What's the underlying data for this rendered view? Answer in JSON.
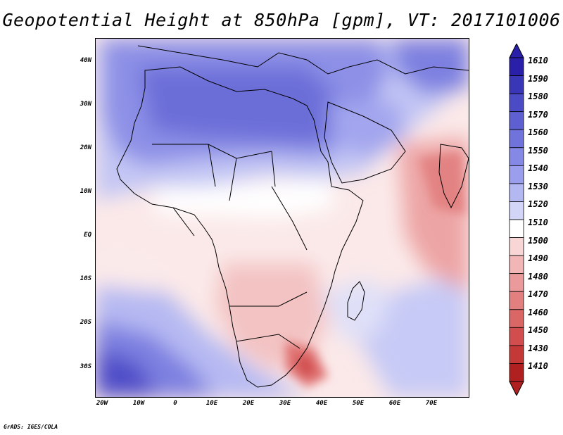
{
  "title": "Geopotential Height at 850hPa [gpm], VT: 2017101006",
  "credit": "GrADS: IGES/COLA",
  "lat_labels": [
    "40N",
    "30N",
    "20N",
    "10N",
    "EQ",
    "10S",
    "20S",
    "30S"
  ],
  "lon_labels": [
    "20W",
    "10W",
    "0",
    "10E",
    "20E",
    "30E",
    "40E",
    "50E",
    "60E",
    "70E"
  ],
  "colorbar": {
    "levels": [
      "1610",
      "1590",
      "1580",
      "1570",
      "1560",
      "1550",
      "1540",
      "1530",
      "1520",
      "1510",
      "1500",
      "1490",
      "1480",
      "1470",
      "1460",
      "1450",
      "1430",
      "1410"
    ],
    "colors": [
      "#2a1fa8",
      "#3a36b8",
      "#4c4bc6",
      "#5e60d2",
      "#7173dc",
      "#8588e4",
      "#9a9eec",
      "#b4b8f2",
      "#d2d5f8",
      "#ffffff",
      "#f8d6d6",
      "#f2b6b6",
      "#ea9a9a",
      "#e28080",
      "#da6666",
      "#d24e4e",
      "#c43838",
      "#b02020"
    ]
  },
  "map": {
    "region": "Africa",
    "field_colors": {
      "high": "#6b6bd8",
      "mid_high": "#b6b8f2",
      "neutral": "#ffffff",
      "mid_low": "#f4c6c6",
      "low": "#e58a8a"
    }
  }
}
